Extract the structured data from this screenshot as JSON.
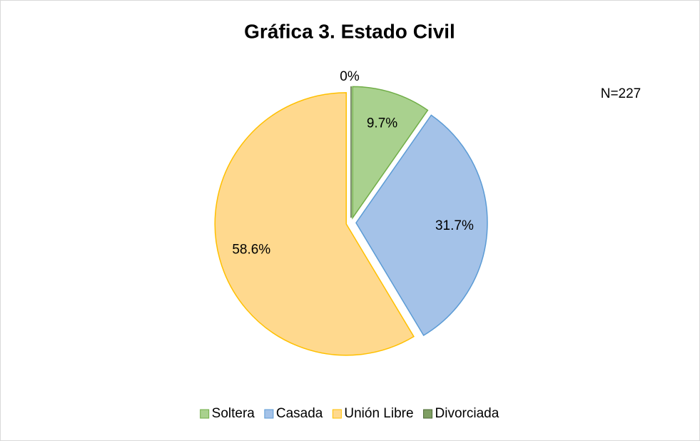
{
  "chart_data": {
    "type": "pie",
    "title": "Gráfica 3. Estado Civil",
    "annotation": "N=227",
    "categories": [
      "Soltera",
      "Casada",
      "Unión Libre",
      "Divorciada"
    ],
    "values": [
      9.7,
      31.7,
      58.6,
      0
    ],
    "value_labels": [
      "9.7%",
      "31.7%",
      "58.6%",
      "0%"
    ],
    "colors": [
      "#a9d18e",
      "#a4c2e8",
      "#ffd98e",
      "#7f9f63"
    ],
    "stroke_colors": [
      "#70ad47",
      "#5b9bd5",
      "#ffc000",
      "#4e6b36"
    ],
    "legend": "bottom"
  }
}
